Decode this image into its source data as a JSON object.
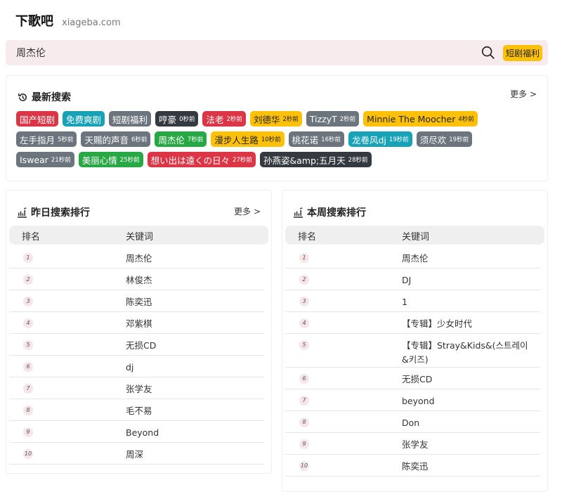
{
  "header": {
    "logo": "下歌吧",
    "domain": "xiageba.com"
  },
  "search": {
    "value": "周杰伦",
    "promo": "短剧福利"
  },
  "recent": {
    "title": "最新搜索",
    "more": "更多 >",
    "tags": [
      {
        "text": "国产短剧",
        "time": "",
        "color": "#dc3545"
      },
      {
        "text": "免费爽剧",
        "time": "",
        "color": "#17a2b8"
      },
      {
        "text": "短剧福利",
        "time": "",
        "color": "#6c757d"
      },
      {
        "text": "哼豪",
        "time": "0秒前",
        "color": "#343a40"
      },
      {
        "text": "法老",
        "time": "2秒前",
        "color": "#dc3545"
      },
      {
        "text": "刘德华",
        "time": "2秒前",
        "color": "#ffc107"
      },
      {
        "text": "TizzyT",
        "time": "2秒前",
        "color": "#6c757d"
      },
      {
        "text": "Minnie The Moocher",
        "time": "4秒前",
        "color": "#ffc107"
      },
      {
        "text": "左手指月",
        "time": "5秒前",
        "color": "#6c757d"
      },
      {
        "text": "天赐的声音",
        "time": "6秒前",
        "color": "#6c757d"
      },
      {
        "text": "周杰伦",
        "time": "7秒前",
        "color": "#28a745"
      },
      {
        "text": "漫步人生路",
        "time": "10秒前",
        "color": "#ffc107"
      },
      {
        "text": "桃花诺",
        "time": "16秒前",
        "color": "#6c757d"
      },
      {
        "text": "龙卷风dj",
        "time": "19秒前",
        "color": "#17a2b8"
      },
      {
        "text": "须尽欢",
        "time": "19秒前",
        "color": "#6c757d"
      },
      {
        "text": "Iswear",
        "time": "21秒前",
        "color": "#6c757d"
      },
      {
        "text": "美丽心情",
        "time": "25秒前",
        "color": "#28a745"
      },
      {
        "text": "想い出は遠くの日々",
        "time": "27秒前",
        "color": "#dc3545"
      },
      {
        "text": "孙燕姿&amp;五月天",
        "time": "28秒前",
        "color": "#343a40"
      }
    ]
  },
  "yesterday": {
    "title": "昨日搜索排行",
    "more": "更多 >",
    "col_rank": "排名",
    "col_keyword": "关键词",
    "rows": [
      "周杰伦",
      "林俊杰",
      "陈奕迅",
      "邓紫棋",
      "无损CD",
      "dj",
      "张学友",
      "毛不易",
      "Beyond",
      "周深"
    ]
  },
  "week": {
    "title": "本周搜索排行",
    "col_rank": "排名",
    "col_keyword": "关键词",
    "rows": [
      "周杰伦",
      "DJ",
      "1",
      "【专辑】少女时代",
      "【专辑】Stray&Kids&(스트레이&키즈)",
      "无损CD",
      "beyond",
      "Don",
      "张学友",
      "陈奕迅"
    ]
  }
}
